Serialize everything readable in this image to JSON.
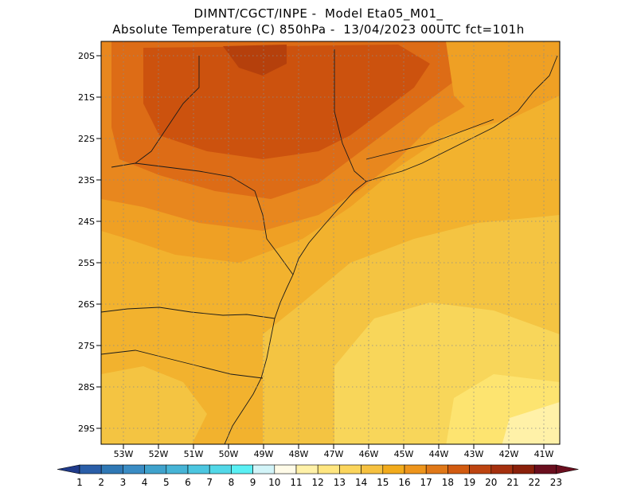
{
  "header": {
    "line1": "DIMNT/CGCT/INPE -  Model Eta05_M01_",
    "line2": "Absolute Temperature (C) 850hPa -  13/04/2023 00UTC fct=101h"
  },
  "axes": {
    "lat_labels": [
      "20S",
      "21S",
      "22S",
      "23S",
      "24S",
      "25S",
      "26S",
      "27S",
      "28S",
      "29S"
    ],
    "lon_labels": [
      "53W",
      "52W",
      "51W",
      "50W",
      "49W",
      "48W",
      "47W",
      "46W",
      "45W",
      "44W",
      "43W",
      "42W",
      "41W"
    ]
  },
  "colorbar": {
    "labels": [
      "1",
      "2",
      "3",
      "4",
      "5",
      "6",
      "7",
      "8",
      "9",
      "10",
      "11",
      "12",
      "13",
      "14",
      "15",
      "16",
      "17",
      "18",
      "19",
      "20",
      "21",
      "22",
      "23"
    ],
    "colors": [
      "#1f3a8a",
      "#2a5ea8",
      "#2f78b5",
      "#3a8cc4",
      "#3fa2cc",
      "#46b4d6",
      "#4cc6e0",
      "#52d8e8",
      "#5af0f4",
      "#d2f4f8",
      "#fffbe8",
      "#fff1a8",
      "#ffe680",
      "#fbd55c",
      "#f6c140",
      "#f2ab1c",
      "#ee951c",
      "#e07818",
      "#d25b10",
      "#bd4410",
      "#a5300e",
      "#8a200a",
      "#6a0e1e"
    ]
  },
  "field": {
    "colors": {
      "t23": "#b5400c",
      "t22": "#cc520e",
      "t21": "#dd6c16",
      "t20": "#e8871e",
      "t19": "#efa024",
      "t18": "#f2b22e",
      "t17": "#f4c442",
      "t16": "#f8d65a",
      "t15": "#fde470",
      "t14": "#fff1a8",
      "t13": "#fffbe8"
    }
  }
}
